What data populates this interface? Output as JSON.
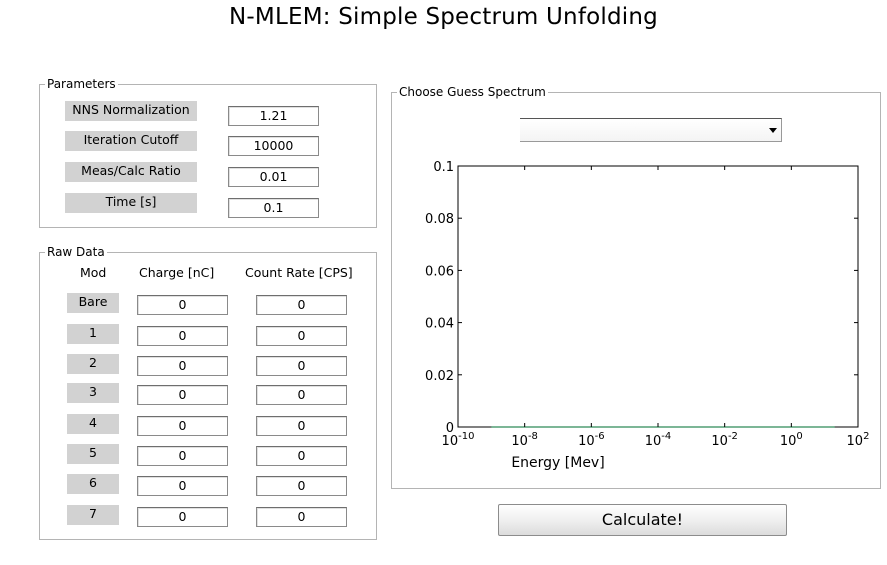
{
  "title": "N-MLEM: Simple Spectrum Unfolding",
  "parameters": {
    "title": "Parameters",
    "rows": [
      {
        "label": "NNS Normalization",
        "value": "1.21"
      },
      {
        "label": "Iteration Cutoff",
        "value": "10000"
      },
      {
        "label": "Meas/Calc Ratio",
        "value": "0.01"
      },
      {
        "label": "Time [s]",
        "value": "0.1"
      }
    ]
  },
  "raw_data": {
    "title": "Raw Data",
    "headers": {
      "mod": "Mod",
      "charge": "Charge [nC]",
      "rate": "Count Rate [CPS]"
    },
    "rows": [
      {
        "mod": "Bare",
        "charge": "0",
        "rate": "0"
      },
      {
        "mod": "1",
        "charge": "0",
        "rate": "0"
      },
      {
        "mod": "2",
        "charge": "0",
        "rate": "0"
      },
      {
        "mod": "3",
        "charge": "0",
        "rate": "0"
      },
      {
        "mod": "4",
        "charge": "0",
        "rate": "0"
      },
      {
        "mod": "5",
        "charge": "0",
        "rate": "0"
      },
      {
        "mod": "6",
        "charge": "0",
        "rate": "0"
      },
      {
        "mod": "7",
        "charge": "0",
        "rate": "0"
      }
    ]
  },
  "guess": {
    "title": "Choose Guess Spectrum",
    "selected": ""
  },
  "calculate_label": "Calculate!",
  "chart_data": {
    "type": "line",
    "xlabel": "Energy [Mev]",
    "ylabel": "",
    "xscale": "log",
    "xlim": [
      1e-10,
      100
    ],
    "ylim": [
      0,
      0.1
    ],
    "x_ticks": [
      {
        "base": "10",
        "exp": "-10"
      },
      {
        "base": "10",
        "exp": "-8"
      },
      {
        "base": "10",
        "exp": "-6"
      },
      {
        "base": "10",
        "exp": "-4"
      },
      {
        "base": "10",
        "exp": "-2"
      },
      {
        "base": "10",
        "exp": "0"
      },
      {
        "base": "10",
        "exp": "2"
      }
    ],
    "y_ticks": [
      "0",
      "0.02",
      "0.04",
      "0.06",
      "0.08",
      "0.1"
    ],
    "series": [
      {
        "color": "#2e8b57",
        "x": [
          1e-09,
          20
        ],
        "y": [
          0,
          0
        ]
      }
    ],
    "grid": false
  }
}
